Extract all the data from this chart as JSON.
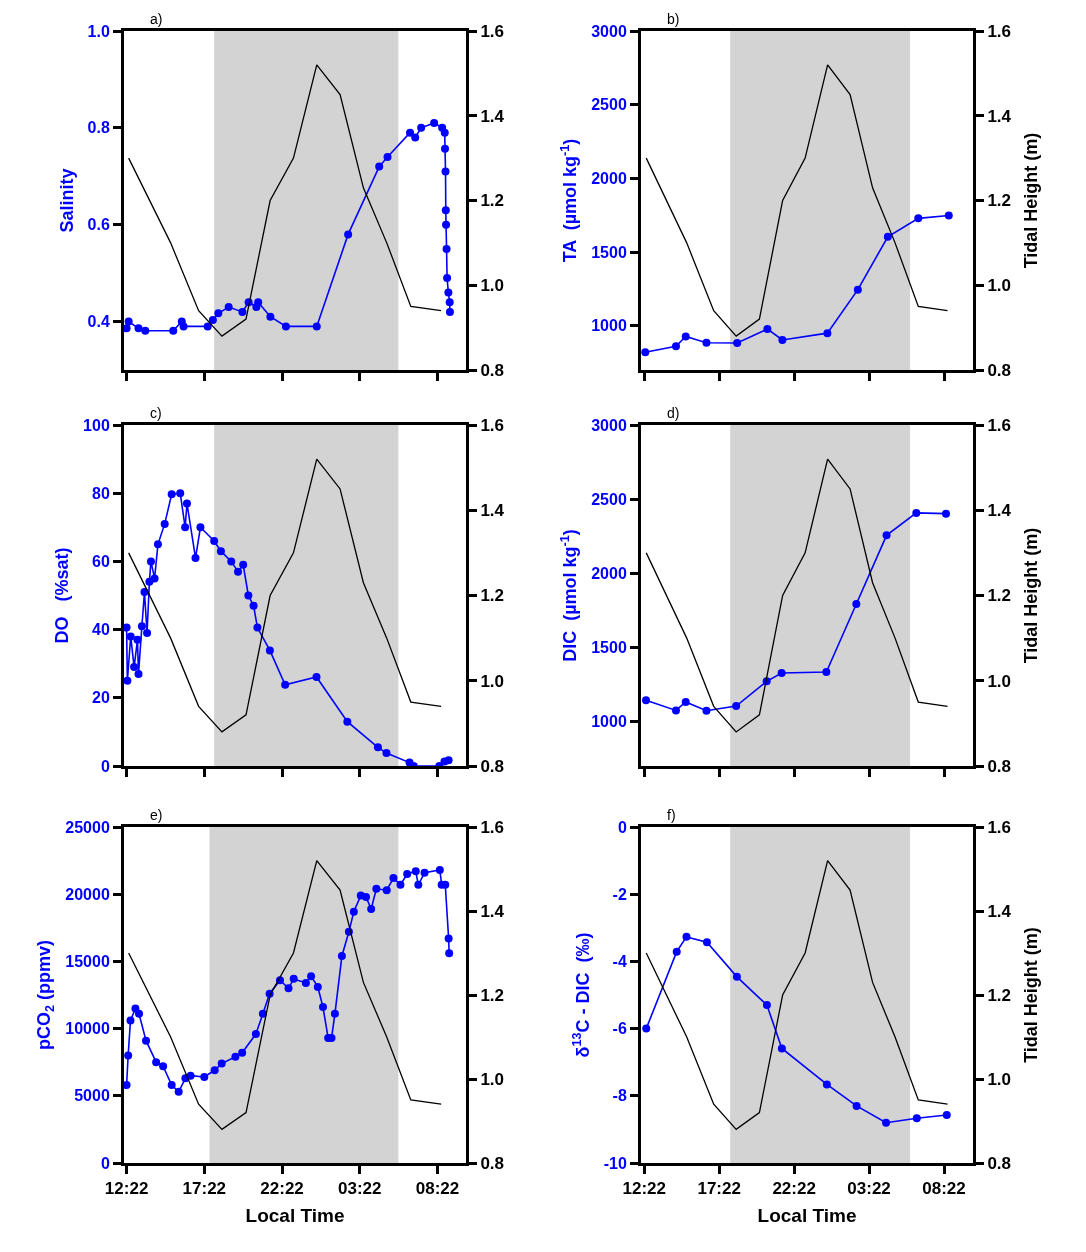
{
  "chart_data": [
    {
      "type": "line",
      "title": "a)",
      "ylabel": "Salinity",
      "ylim": [
        0.3,
        1.0
      ],
      "yticks": [
        0.4,
        0.6,
        0.8,
        {
          "value": 1.0,
          "label": "1.0"
        }
      ],
      "xlim": [
        "2000-01-01T12:12",
        "2000-01-02T10:12"
      ],
      "xticks": [
        {
          "value": "2000-01-01T12:22",
          "label": null
        },
        {
          "value": "2000-01-01T17:22",
          "label": null
        },
        {
          "value": "2000-01-01T22:22",
          "label": null
        },
        {
          "value": "2000-01-02T03:22",
          "label": null
        },
        {
          "value": "2000-01-02T08:22",
          "label": null
        }
      ],
      "y2lim": [
        0.8,
        1.6
      ],
      "y2ticks": [
        {
          "value": 0.8,
          "label": "0.8"
        },
        {
          "value": 1.0,
          "label": "1.0"
        },
        {
          "value": 1.2,
          "label": "1.2"
        },
        {
          "value": 1.4,
          "label": "1.4"
        },
        {
          "value": 1.6,
          "label": "1.6"
        }
      ],
      "tick_labels": "y",
      "grid": false,
      "bands": [
        {
          "axis": "x",
          "from": "2000-01-01T18:00",
          "to": "2000-01-02T05:51",
          "color": "#d3d3d3"
        }
      ],
      "series": [
        {
          "color": "#0000ff",
          "marker": "circle",
          "x": [
            "2000-01-01T12:22",
            "2000-01-01T12:30",
            "2000-01-01T13:08",
            "2000-01-01T13:34",
            "2000-01-01T15:22",
            "2000-01-01T15:55",
            "2000-01-01T16:02",
            "2000-01-01T17:35",
            "2000-01-01T17:55",
            "2000-01-01T18:16",
            "2000-01-01T18:56",
            "2000-01-01T19:49",
            "2000-01-01T20:13",
            "2000-01-01T20:43",
            "2000-01-01T20:50",
            "2000-01-01T21:37",
            "2000-01-01T22:37",
            "2000-01-02T00:36",
            "2000-01-02T02:37",
            "2000-01-02T04:37",
            "2000-01-02T05:09",
            "2000-01-02T06:36",
            "2000-01-02T06:56",
            "2000-01-02T07:19",
            "2000-01-02T08:09",
            "2000-01-02T08:40",
            "2000-01-02T08:50",
            "2000-01-02T08:51",
            "2000-01-02T08:53",
            "2000-01-02T08:54",
            "2000-01-02T08:55",
            "2000-01-02T08:57",
            "2000-01-02T08:59",
            "2000-01-02T09:04",
            "2000-01-02T09:09",
            "2000-01-02T09:10"
          ],
          "values": [
            0.386,
            0.4,
            0.386,
            0.381,
            0.381,
            0.4,
            0.39,
            0.39,
            0.403,
            0.417,
            0.43,
            0.42,
            0.44,
            0.43,
            0.44,
            0.41,
            0.39,
            0.39,
            0.58,
            0.72,
            0.74,
            0.79,
            0.78,
            0.8,
            0.81,
            0.8,
            0.79,
            0.757,
            0.71,
            0.63,
            0.6,
            0.55,
            0.49,
            0.46,
            0.44,
            0.42
          ]
        },
        {
          "color": "#000000",
          "marker": "none",
          "axis": "y2",
          "x": [
            "2000-01-01T12:30",
            "2000-01-01T15:12",
            "2000-01-01T17:00",
            "2000-01-01T18:30",
            "2000-01-01T20:03",
            "2000-01-01T21:36",
            "2000-01-01T23:06",
            "2000-01-02T00:36",
            "2000-01-02T02:06",
            "2000-01-02T03:36",
            "2000-01-02T05:06",
            "2000-01-02T06:39",
            "2000-01-02T08:36"
          ],
          "values": [
            1.3,
            1.1,
            0.94,
            0.88,
            0.92,
            1.2,
            1.3,
            1.52,
            1.45,
            1.23,
            1.1,
            0.95,
            0.94
          ]
        }
      ]
    },
    {
      "type": "line",
      "title": "b)",
      "ylabel": "TA  (µmol kg$^{-1}$)",
      "y2label": "Tidal Height (m)",
      "ylim": [
        700,
        3000
      ],
      "yticks": [
        1000,
        1500,
        2000,
        2500,
        3000
      ],
      "xlim": [
        "2000-01-01T12:09",
        "2000-01-02T10:18"
      ],
      "xticks": [
        {
          "value": "2000-01-01T12:22",
          "label": null
        },
        {
          "value": "2000-01-01T17:22",
          "label": null
        },
        {
          "value": "2000-01-01T22:22",
          "label": null
        },
        {
          "value": "2000-01-02T03:22",
          "label": null
        },
        {
          "value": "2000-01-02T08:22",
          "label": null
        }
      ],
      "y2lim": [
        0.8,
        1.6
      ],
      "y2ticks": [
        {
          "value": 0.8,
          "label": "0.8"
        },
        {
          "value": 1.0,
          "label": "1.0"
        },
        {
          "value": 1.2,
          "label": "1.2"
        },
        {
          "value": 1.4,
          "label": "1.4"
        },
        {
          "value": 1.6,
          "label": "1.6"
        }
      ],
      "tick_labels": "y",
      "grid": false,
      "bands": [
        {
          "axis": "x",
          "from": "2000-01-01T18:06",
          "to": "2000-01-02T06:06",
          "color": "#d3d3d3"
        }
      ],
      "series": [
        {
          "color": "#0000ff",
          "marker": "circle",
          "x": [
            "2000-01-01T12:26",
            "2000-01-01T14:29",
            "2000-01-01T15:08",
            "2000-01-01T16:31",
            "2000-01-01T18:34",
            "2000-01-01T20:35",
            "2000-01-01T21:35",
            "2000-01-02T00:35",
            "2000-01-02T02:37",
            "2000-01-02T04:37",
            "2000-01-02T06:39",
            "2000-01-02T08:41"
          ],
          "values": [
            820,
            861,
            928,
            885,
            883,
            978,
            904,
            950,
            1245,
            1604,
            1729,
            1748
          ]
        },
        {
          "color": "#000000",
          "marker": "none",
          "axis": "y2",
          "x": [
            "2000-01-01T12:30",
            "2000-01-01T15:12",
            "2000-01-01T17:00",
            "2000-01-01T18:30",
            "2000-01-01T20:03",
            "2000-01-01T21:36",
            "2000-01-01T23:06",
            "2000-01-02T00:36",
            "2000-01-02T02:06",
            "2000-01-02T03:36",
            "2000-01-02T05:06",
            "2000-01-02T06:39",
            "2000-01-02T08:36"
          ],
          "values": [
            1.3,
            1.1,
            0.94,
            0.88,
            0.92,
            1.2,
            1.3,
            1.52,
            1.45,
            1.23,
            1.1,
            0.95,
            0.94
          ]
        }
      ]
    },
    {
      "type": "line",
      "title": "c)",
      "ylabel": "DO   (%sat)",
      "ylim": [
        0,
        100
      ],
      "yticks": [
        0,
        20,
        40,
        60,
        80,
        100
      ],
      "xlim": [
        "2000-01-01T12:12",
        "2000-01-02T10:12"
      ],
      "xticks": [
        {
          "value": "2000-01-01T12:22",
          "label": null
        },
        {
          "value": "2000-01-01T17:22",
          "label": null
        },
        {
          "value": "2000-01-01T22:22",
          "label": null
        },
        {
          "value": "2000-01-02T03:22",
          "label": null
        },
        {
          "value": "2000-01-02T08:22",
          "label": null
        }
      ],
      "y2lim": [
        0.8,
        1.6
      ],
      "y2ticks": [
        {
          "value": 0.8,
          "label": "0.8"
        },
        {
          "value": 1.0,
          "label": "1.0"
        },
        {
          "value": 1.2,
          "label": "1.2"
        },
        {
          "value": 1.4,
          "label": "1.4"
        },
        {
          "value": 1.6,
          "label": "1.6"
        }
      ],
      "tick_labels": "y",
      "grid": false,
      "bands": [
        {
          "axis": "x",
          "from": "2000-01-01T18:00",
          "to": "2000-01-02T05:51",
          "color": "#d3d3d3"
        }
      ],
      "series": [
        {
          "color": "#0000ff",
          "marker": "circle",
          "x": [
            "2000-01-01T12:22",
            "2000-01-01T12:25",
            "2000-01-01T12:38",
            "2000-01-01T12:51",
            "2000-01-01T13:04",
            "2000-01-01T13:08",
            "2000-01-01T13:21",
            "2000-01-01T13:31",
            "2000-01-01T13:41",
            "2000-01-01T13:50",
            "2000-01-01T13:56",
            "2000-01-01T14:10",
            "2000-01-01T14:23",
            "2000-01-01T14:49",
            "2000-01-01T15:16",
            "2000-01-01T15:49",
            "2000-01-01T16:08",
            "2000-01-01T16:15",
            "2000-01-01T16:48",
            "2000-01-01T17:07",
            "2000-01-01T18:00",
            "2000-01-01T18:26",
            "2000-01-01T19:06",
            "2000-01-01T19:32",
            "2000-01-01T19:52",
            "2000-01-01T20:12",
            "2000-01-01T20:32",
            "2000-01-01T20:47",
            "2000-01-01T21:35",
            "2000-01-01T22:34",
            "2000-01-02T00:35",
            "2000-01-02T02:34",
            "2000-01-02T04:32",
            "2000-01-02T05:05",
            "2000-01-02T06:34",
            "2000-01-02T06:50",
            "2000-01-02T08:29",
            "2000-01-02T08:49",
            "2000-01-02T09:05"
          ],
          "values": [
            40.6,
            25,
            38,
            29,
            37,
            27,
            41,
            51,
            39,
            54,
            60,
            55,
            65,
            71,
            79.7,
            80,
            70,
            77,
            61,
            70,
            66,
            63,
            60,
            57,
            59,
            50,
            47,
            40.6,
            33.9,
            23.8,
            26.1,
            13.0,
            5.5,
            3.8,
            1.0,
            0,
            0,
            1.3,
            1.7
          ]
        },
        {
          "color": "#000000",
          "marker": "none",
          "axis": "y2",
          "x": [
            "2000-01-01T12:30",
            "2000-01-01T15:12",
            "2000-01-01T17:00",
            "2000-01-01T18:30",
            "2000-01-01T20:03",
            "2000-01-01T21:36",
            "2000-01-01T23:06",
            "2000-01-02T00:36",
            "2000-01-02T02:06",
            "2000-01-02T03:36",
            "2000-01-02T05:06",
            "2000-01-02T06:39",
            "2000-01-02T08:36"
          ],
          "values": [
            1.3,
            1.1,
            0.94,
            0.88,
            0.92,
            1.2,
            1.3,
            1.52,
            1.45,
            1.23,
            1.1,
            0.95,
            0.94
          ]
        }
      ]
    },
    {
      "type": "line",
      "title": "d)",
      "ylabel": "DIC  (µmol kg$^{-1}$)",
      "y2label": "Tidal Height (m)",
      "ylim": [
        700,
        3000
      ],
      "yticks": [
        1000,
        1500,
        2000,
        2500,
        3000
      ],
      "xlim": [
        "2000-01-01T12:09",
        "2000-01-02T10:18"
      ],
      "xticks": [
        {
          "value": "2000-01-01T12:22",
          "label": null
        },
        {
          "value": "2000-01-01T17:22",
          "label": null
        },
        {
          "value": "2000-01-01T22:22",
          "label": null
        },
        {
          "value": "2000-01-02T03:22",
          "label": null
        },
        {
          "value": "2000-01-02T08:22",
          "label": null
        }
      ],
      "y2lim": [
        0.8,
        1.6
      ],
      "y2ticks": [
        {
          "value": 0.8,
          "label": "0.8"
        },
        {
          "value": 1.0,
          "label": "1.0"
        },
        {
          "value": 1.2,
          "label": "1.2"
        },
        {
          "value": 1.4,
          "label": "1.4"
        },
        {
          "value": 1.6,
          "label": "1.6"
        }
      ],
      "tick_labels": "y",
      "grid": false,
      "bands": [
        {
          "axis": "x",
          "from": "2000-01-01T18:06",
          "to": "2000-01-02T06:06",
          "color": "#d3d3d3"
        }
      ],
      "series": [
        {
          "color": "#0000ff",
          "marker": "circle",
          "x": [
            "2000-01-01T12:29",
            "2000-01-01T14:29",
            "2000-01-01T15:08",
            "2000-01-01T16:31",
            "2000-01-01T18:30",
            "2000-01-01T20:32",
            "2000-01-01T21:32",
            "2000-01-02T00:31",
            "2000-01-02T02:31",
            "2000-01-02T04:32",
            "2000-01-02T06:31",
            "2000-01-02T08:30"
          ],
          "values": [
            1144,
            1075,
            1132,
            1073,
            1104,
            1271,
            1327,
            1334,
            1793,
            2256,
            2407,
            2402
          ]
        },
        {
          "color": "#000000",
          "marker": "none",
          "axis": "y2",
          "x": [
            "2000-01-01T12:30",
            "2000-01-01T15:12",
            "2000-01-01T17:00",
            "2000-01-01T18:30",
            "2000-01-01T20:03",
            "2000-01-01T21:36",
            "2000-01-01T23:06",
            "2000-01-02T00:36",
            "2000-01-02T02:06",
            "2000-01-02T03:36",
            "2000-01-02T05:06",
            "2000-01-02T06:39",
            "2000-01-02T08:36"
          ],
          "values": [
            1.3,
            1.1,
            0.94,
            0.88,
            0.92,
            1.2,
            1.3,
            1.52,
            1.45,
            1.23,
            1.1,
            0.95,
            0.94
          ]
        }
      ]
    },
    {
      "type": "line",
      "title": "e)",
      "ylabel": "pCO$_{2}$ (ppmv)",
      "xlabel": "Local Time",
      "ylim": [
        0,
        25000
      ],
      "yticks": [
        0,
        5000,
        10000,
        15000,
        20000,
        25000
      ],
      "xlim": [
        "2000-01-01T12:12",
        "2000-01-02T10:12"
      ],
      "xticks": [
        {
          "value": "2000-01-01T12:22",
          "label": "12:22"
        },
        {
          "value": "2000-01-01T17:22",
          "label": "17:22"
        },
        {
          "value": "2000-01-01T22:22",
          "label": "22:22"
        },
        {
          "value": "2000-01-02T03:22",
          "label": "03:22"
        },
        {
          "value": "2000-01-02T08:22",
          "label": "08:22"
        }
      ],
      "y2lim": [
        0.8,
        1.6
      ],
      "y2ticks": [
        {
          "value": 0.8,
          "label": "0.8"
        },
        {
          "value": 1.0,
          "label": "1.0"
        },
        {
          "value": 1.2,
          "label": "1.2"
        },
        {
          "value": 1.4,
          "label": "1.4"
        },
        {
          "value": 1.6,
          "label": "1.6"
        }
      ],
      "grid": false,
      "bands": [
        {
          "axis": "x",
          "from": "2000-01-01T17:42",
          "to": "2000-01-02T05:51",
          "color": "#d3d3d3"
        }
      ],
      "series": [
        {
          "color": "#0000ff",
          "marker": "circle",
          "x": [
            "2000-01-01T12:22",
            "2000-01-01T12:28",
            "2000-01-01T12:37",
            "2000-01-01T12:56",
            "2000-01-01T13:10",
            "2000-01-01T13:37",
            "2000-01-01T14:16",
            "2000-01-01T14:43",
            "2000-01-01T15:16",
            "2000-01-01T15:43",
            "2000-01-01T16:09",
            "2000-01-01T16:29",
            "2000-01-01T17:22",
            "2000-01-01T18:02",
            "2000-01-01T18:29",
            "2000-01-01T19:22",
            "2000-01-01T19:48",
            "2000-01-01T20:41",
            "2000-01-01T21:08",
            "2000-01-01T21:34",
            "2000-01-01T22:14",
            "2000-01-01T22:47",
            "2000-01-01T23:07",
            "2000-01-01T23:54",
            "2000-01-02T00:14",
            "2000-01-02T00:40",
            "2000-01-02T01:00",
            "2000-01-02T01:20",
            "2000-01-02T01:33",
            "2000-01-02T01:46",
            "2000-01-02T02:13",
            "2000-01-02T02:40",
            "2000-01-02T02:59",
            "2000-01-02T03:26",
            "2000-01-02T03:46",
            "2000-01-02T04:06",
            "2000-01-02T04:26",
            "2000-01-02T05:06",
            "2000-01-02T05:32",
            "2000-01-02T05:59",
            "2000-01-02T06:25",
            "2000-01-02T06:58",
            "2000-01-02T07:08",
            "2000-01-02T07:32",
            "2000-01-02T08:31",
            "2000-01-02T08:38",
            "2000-01-02T08:52",
            "2000-01-02T09:05",
            "2000-01-02T09:07"
          ],
          "values": [
            5800,
            8000,
            10600,
            11500,
            11100,
            9100,
            7500,
            7200,
            5800,
            5300,
            6300,
            6500,
            6400,
            6900,
            7400,
            7900,
            8200,
            9600,
            11100,
            12600,
            13600,
            13000,
            13700,
            13400,
            13900,
            13100,
            11600,
            9300,
            9300,
            11100,
            15400,
            17200,
            18700,
            19900,
            19800,
            18900,
            20400,
            20300,
            21200,
            20700,
            21500,
            21700,
            20700,
            21600,
            21800,
            20700,
            20700,
            16700,
            15600
          ]
        },
        {
          "color": "#000000",
          "marker": "none",
          "axis": "y2",
          "x": [
            "2000-01-01T12:30",
            "2000-01-01T15:12",
            "2000-01-01T17:00",
            "2000-01-01T18:30",
            "2000-01-01T20:03",
            "2000-01-01T21:36",
            "2000-01-01T23:06",
            "2000-01-02T00:36",
            "2000-01-02T02:06",
            "2000-01-02T03:36",
            "2000-01-02T05:06",
            "2000-01-02T06:39",
            "2000-01-02T08:36"
          ],
          "values": [
            1.3,
            1.1,
            0.94,
            0.88,
            0.92,
            1.2,
            1.3,
            1.52,
            1.45,
            1.23,
            1.1,
            0.95,
            0.94
          ]
        }
      ]
    },
    {
      "type": "line",
      "title": "f)",
      "ylabel": "δ$^{13}$C - DIC  (‰)",
      "y2label": "Tidal Height (m)",
      "xlabel": "Local Time",
      "ylim": [
        -10,
        0
      ],
      "yticks": [
        -10,
        -8,
        -6,
        -4,
        -2,
        0
      ],
      "xlim": [
        "2000-01-01T12:09",
        "2000-01-02T10:18"
      ],
      "xticks": [
        {
          "value": "2000-01-01T12:22",
          "label": "12:22"
        },
        {
          "value": "2000-01-01T17:22",
          "label": "17:22"
        },
        {
          "value": "2000-01-01T22:22",
          "label": "22:22"
        },
        {
          "value": "2000-01-02T03:22",
          "label": "03:22"
        },
        {
          "value": "2000-01-02T08:22",
          "label": "08:22"
        }
      ],
      "y2lim": [
        0.8,
        1.6
      ],
      "y2ticks": [
        {
          "value": 0.8,
          "label": "0.8"
        },
        {
          "value": 1.0,
          "label": "1.0"
        },
        {
          "value": 1.2,
          "label": "1.2"
        },
        {
          "value": 1.4,
          "label": "1.4"
        },
        {
          "value": 1.6,
          "label": "1.6"
        }
      ],
      "grid": false,
      "bands": [
        {
          "axis": "x",
          "from": "2000-01-01T18:06",
          "to": "2000-01-02T06:06",
          "color": "#d3d3d3"
        }
      ],
      "series": [
        {
          "color": "#0000ff",
          "marker": "circle",
          "x": [
            "2000-01-01T12:30",
            "2000-01-01T14:32",
            "2000-01-01T15:11",
            "2000-01-01T16:33",
            "2000-01-01T18:33",
            "2000-01-01T20:33",
            "2000-01-01T21:33",
            "2000-01-02T00:33",
            "2000-01-02T02:32",
            "2000-01-02T04:30",
            "2000-01-02T06:33",
            "2000-01-02T08:33"
          ],
          "values": [
            -6.0,
            -3.71,
            -3.27,
            -3.43,
            -4.46,
            -5.3,
            -6.59,
            -7.66,
            -8.3,
            -8.8,
            -8.67,
            -8.57
          ]
        },
        {
          "color": "#000000",
          "marker": "none",
          "axis": "y2",
          "x": [
            "2000-01-01T12:30",
            "2000-01-01T15:12",
            "2000-01-01T17:00",
            "2000-01-01T18:30",
            "2000-01-01T20:03",
            "2000-01-01T21:36",
            "2000-01-01T23:06",
            "2000-01-02T00:36",
            "2000-01-02T02:06",
            "2000-01-02T03:36",
            "2000-01-02T05:06",
            "2000-01-02T06:39",
            "2000-01-02T08:36"
          ],
          "values": [
            1.3,
            1.1,
            0.94,
            0.88,
            0.92,
            1.2,
            1.3,
            1.52,
            1.45,
            1.23,
            1.1,
            0.95,
            0.94
          ]
        }
      ]
    }
  ]
}
